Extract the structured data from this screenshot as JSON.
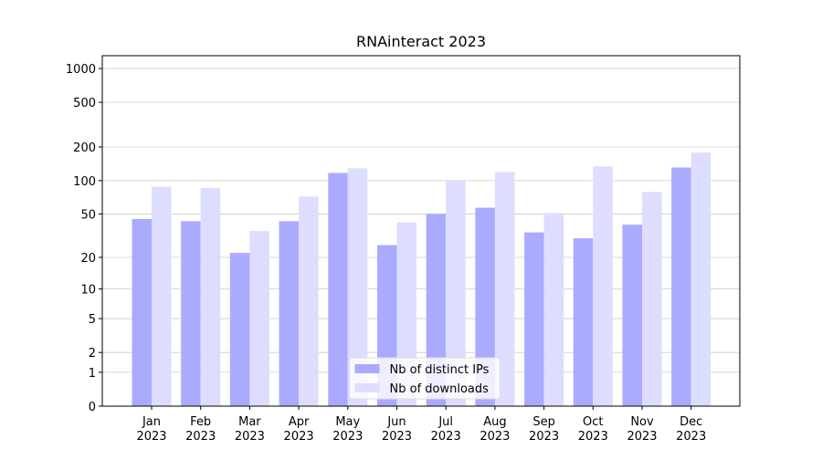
{
  "chart_data": {
    "type": "bar",
    "title": "RNAinteract 2023",
    "categories": [
      "Jan\n2023",
      "Feb\n2023",
      "Mar\n2023",
      "Apr\n2023",
      "May\n2023",
      "Jun\n2023",
      "Jul\n2023",
      "Aug\n2023",
      "Sep\n2023",
      "Oct\n2023",
      "Nov\n2023",
      "Dec\n2023"
    ],
    "series": [
      {
        "name": "Nb of distinct IPs",
        "color": "#aaaaff",
        "values": [
          45,
          43,
          22,
          43,
          117,
          26,
          50,
          57,
          34,
          30,
          40,
          131
        ]
      },
      {
        "name": "Nb of downloads",
        "color": "#ddddff",
        "values": [
          88,
          86,
          35,
          72,
          129,
          42,
          99,
          119,
          51,
          134,
          79,
          178
        ]
      }
    ],
    "yscale": "log1p",
    "ylim": [
      0,
      1300
    ],
    "yticks": [
      0,
      1,
      2,
      5,
      10,
      20,
      50,
      100,
      200,
      500,
      1000
    ],
    "grid": true,
    "legend": "lower center"
  }
}
